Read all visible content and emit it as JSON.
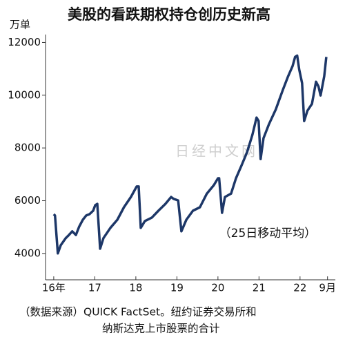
{
  "chart_data": {
    "type": "line",
    "title": "美股的看跌期权持仓创历史新高",
    "y_label": "万单",
    "annotation": "（25日移动平均）",
    "watermark": "日经中文网",
    "source": [
      "（数据来源）QUICK FactSet。纽约证券交易所和",
      "纳斯达克上市股票的合计"
    ],
    "x": [
      2016.0,
      2016.03,
      2016.1,
      2016.17,
      2016.29,
      2016.37,
      2016.45,
      2016.54,
      2016.62,
      2016.71,
      2016.79,
      2016.87,
      2016.96,
      2017.01,
      2017.06,
      2017.13,
      2017.21,
      2017.38,
      2017.55,
      2017.71,
      2017.88,
      2018.02,
      2018.07,
      2018.12,
      2018.22,
      2018.39,
      2018.55,
      2018.72,
      2018.86,
      2018.92,
      2019.03,
      2019.11,
      2019.23,
      2019.39,
      2019.56,
      2019.73,
      2019.9,
      2020.0,
      2020.03,
      2020.1,
      2020.17,
      2020.32,
      2020.44,
      2020.57,
      2020.71,
      2020.84,
      2020.94,
      2020.99,
      2021.04,
      2021.11,
      2021.24,
      2021.41,
      2021.58,
      2021.71,
      2021.82,
      2021.88,
      2021.93,
      2021.98,
      2022.05,
      2022.1,
      2022.18,
      2022.29,
      2022.39,
      2022.45,
      2022.5,
      2022.59,
      2022.64
    ],
    "series": [
      {
        "color": "#1d3768",
        "values": [
          5490,
          5440,
          4000,
          4310,
          4580,
          4700,
          4840,
          4700,
          5020,
          5280,
          5440,
          5490,
          5620,
          5830,
          5880,
          4180,
          4580,
          4970,
          5280,
          5750,
          6140,
          6540,
          6540,
          4970,
          5230,
          5360,
          5620,
          5880,
          6140,
          6070,
          6010,
          4840,
          5280,
          5620,
          5750,
          6270,
          6590,
          6850,
          6850,
          5540,
          6140,
          6270,
          6850,
          7320,
          7840,
          8500,
          9150,
          9020,
          7580,
          8370,
          8890,
          9460,
          10200,
          10720,
          11110,
          11450,
          11500,
          10980,
          10460,
          9020,
          9410,
          9670,
          10510,
          10330,
          9990,
          10720,
          11450
        ]
      }
    ],
    "xlim": [
      2015.8,
      2022.86
    ],
    "xticks": [
      {
        "value": 2016,
        "label": "16年"
      },
      {
        "value": 2017,
        "label": "17"
      },
      {
        "value": 2018,
        "label": "18"
      },
      {
        "value": 2019,
        "label": "19"
      },
      {
        "value": 2020,
        "label": "20"
      },
      {
        "value": 2021,
        "label": "21"
      },
      {
        "value": 2022,
        "label": "22"
      },
      {
        "value": 2022.67,
        "label": "9月"
      }
    ],
    "ylim": [
      3000,
      12300
    ],
    "yticks": [
      4000,
      6000,
      8000,
      10000,
      12000
    ]
  }
}
